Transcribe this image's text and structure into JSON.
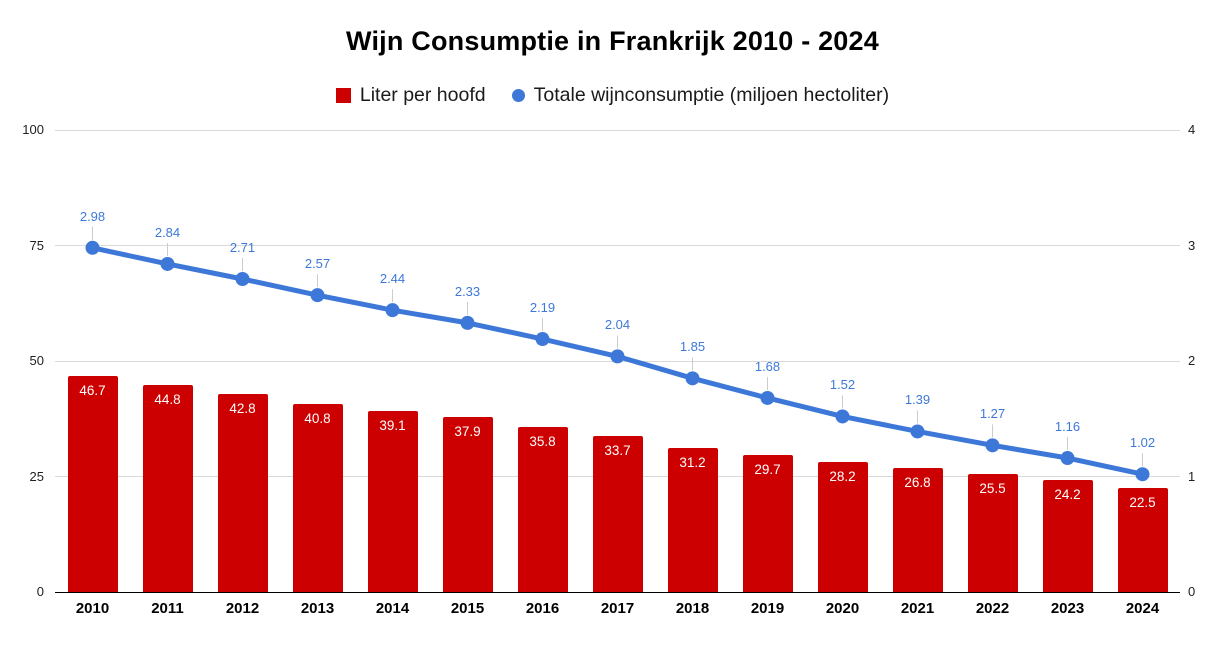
{
  "title": "Wijn Consumptie in Frankrijk 2010 - 2024",
  "legend": {
    "items": [
      {
        "label": "Liter per hoofd",
        "marker": "square",
        "color": "#cc0000"
      },
      {
        "label": "Totale wijnconsumptie (miljoen hectoliter)",
        "marker": "circle",
        "color": "#3d78d8"
      }
    ]
  },
  "colors": {
    "bar": "#cc0000",
    "line": "#3d78d8",
    "grid": "#d9d9d9",
    "baseline": "#000000",
    "bar_label": "#ffffff",
    "point_label": "#3d78d8",
    "leader": "#cccccc"
  },
  "chart_data": {
    "type": "bar+line combo",
    "title": "Wijn Consumptie in Frankrijk 2010 - 2024",
    "categories": [
      "2010",
      "2011",
      "2012",
      "2013",
      "2014",
      "2015",
      "2016",
      "2017",
      "2018",
      "2019",
      "2020",
      "2021",
      "2022",
      "2023",
      "2024"
    ],
    "series": [
      {
        "name": "Liter per hoofd",
        "type": "bar",
        "axis": "left",
        "color": "#cc0000",
        "values": [
          46.7,
          44.8,
          42.8,
          40.8,
          39.1,
          37.9,
          35.8,
          33.7,
          31.2,
          29.7,
          28.2,
          26.8,
          25.5,
          24.2,
          22.5
        ]
      },
      {
        "name": "Totale wijnconsumptie (miljoen hectoliter)",
        "type": "line",
        "axis": "right",
        "color": "#3d78d8",
        "values": [
          2.98,
          2.84,
          2.71,
          2.57,
          2.44,
          2.33,
          2.19,
          2.04,
          1.85,
          1.68,
          1.52,
          1.39,
          1.27,
          1.16,
          1.02
        ]
      }
    ],
    "left_axis": {
      "range": [
        0,
        100
      ],
      "ticks": [
        "0",
        "25",
        "50",
        "75",
        "100"
      ],
      "tick_values": [
        0,
        25,
        50,
        75,
        100
      ]
    },
    "right_axis": {
      "range": [
        0,
        4
      ],
      "ticks": [
        "0",
        "1",
        "2",
        "3",
        "4"
      ],
      "tick_values": [
        0,
        1,
        2,
        3,
        4
      ]
    },
    "grid": true,
    "legend_position": "top",
    "data_labels": true
  }
}
